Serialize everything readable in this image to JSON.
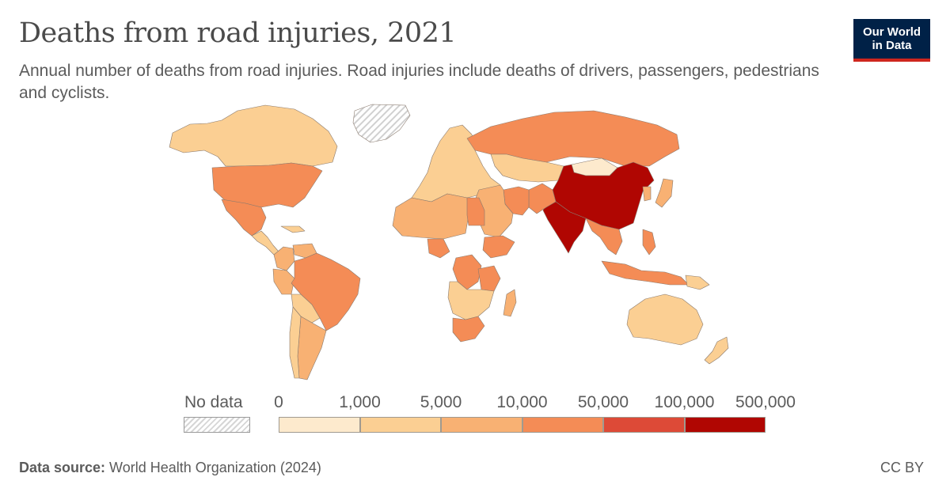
{
  "header": {
    "title": "Deaths from road injuries, 2021",
    "subtitle": "Annual number of deaths from road injuries. Road injuries include deaths of drivers, passengers, pedestrians and cyclists.",
    "logo_line1": "Our World",
    "logo_line2": "in Data"
  },
  "legend": {
    "no_data_label": "No data",
    "ticks": [
      "0",
      "1,000",
      "5,000",
      "10,000",
      "50,000",
      "100,000",
      "500,000"
    ],
    "bins": [
      {
        "range": "0–1,000",
        "color": "#fdeacd"
      },
      {
        "range": "1,000–5,000",
        "color": "#fbcf93"
      },
      {
        "range": "5,000–10,000",
        "color": "#f8b173"
      },
      {
        "range": "10,000–50,000",
        "color": "#f48c56"
      },
      {
        "range": "50,000–100,000",
        "color": "#dd4a37"
      },
      {
        "range": "100,000–500,000",
        "color": "#b00602"
      }
    ],
    "no_data_color": "#d6d6d6"
  },
  "map": {
    "regions": [
      {
        "name": "Greenland",
        "bin": "none"
      },
      {
        "name": "Alaska / Canada",
        "bin": 1
      },
      {
        "name": "United States",
        "bin": 3
      },
      {
        "name": "Mexico",
        "bin": 3
      },
      {
        "name": "Central America & Caribbean",
        "bin": 1
      },
      {
        "name": "Colombia",
        "bin": 2
      },
      {
        "name": "Venezuela",
        "bin": 2
      },
      {
        "name": "Peru",
        "bin": 2
      },
      {
        "name": "Brazil",
        "bin": 3
      },
      {
        "name": "Bolivia / Paraguay",
        "bin": 1
      },
      {
        "name": "Argentina",
        "bin": 2
      },
      {
        "name": "Chile",
        "bin": 1
      },
      {
        "name": "Europe (West)",
        "bin": 1
      },
      {
        "name": "Russia",
        "bin": 3
      },
      {
        "name": "Kazakhstan",
        "bin": 1
      },
      {
        "name": "Mongolia",
        "bin": 0
      },
      {
        "name": "China",
        "bin": 5
      },
      {
        "name": "India",
        "bin": 5
      },
      {
        "name": "Pakistan",
        "bin": 3
      },
      {
        "name": "Iran",
        "bin": 3
      },
      {
        "name": "Middle East",
        "bin": 2
      },
      {
        "name": "North Africa",
        "bin": 2
      },
      {
        "name": "Egypt",
        "bin": 3
      },
      {
        "name": "Nigeria",
        "bin": 3
      },
      {
        "name": "Ethiopia",
        "bin": 3
      },
      {
        "name": "DR Congo",
        "bin": 3
      },
      {
        "name": "Tanzania",
        "bin": 3
      },
      {
        "name": "Southern Africa",
        "bin": 1
      },
      {
        "name": "South Africa",
        "bin": 3
      },
      {
        "name": "Madagascar",
        "bin": 2
      },
      {
        "name": "Southeast Asia",
        "bin": 3
      },
      {
        "name": "Indonesia",
        "bin": 3
      },
      {
        "name": "Philippines",
        "bin": 3
      },
      {
        "name": "Japan",
        "bin": 2
      },
      {
        "name": "Korea",
        "bin": 2
      },
      {
        "name": "Australia",
        "bin": 1
      },
      {
        "name": "New Zealand",
        "bin": 1
      },
      {
        "name": "Papua New Guinea",
        "bin": 1
      }
    ]
  },
  "footer": {
    "source_label": "Data source:",
    "source_text": " World Health Organization (2024)",
    "license": "CC BY"
  }
}
